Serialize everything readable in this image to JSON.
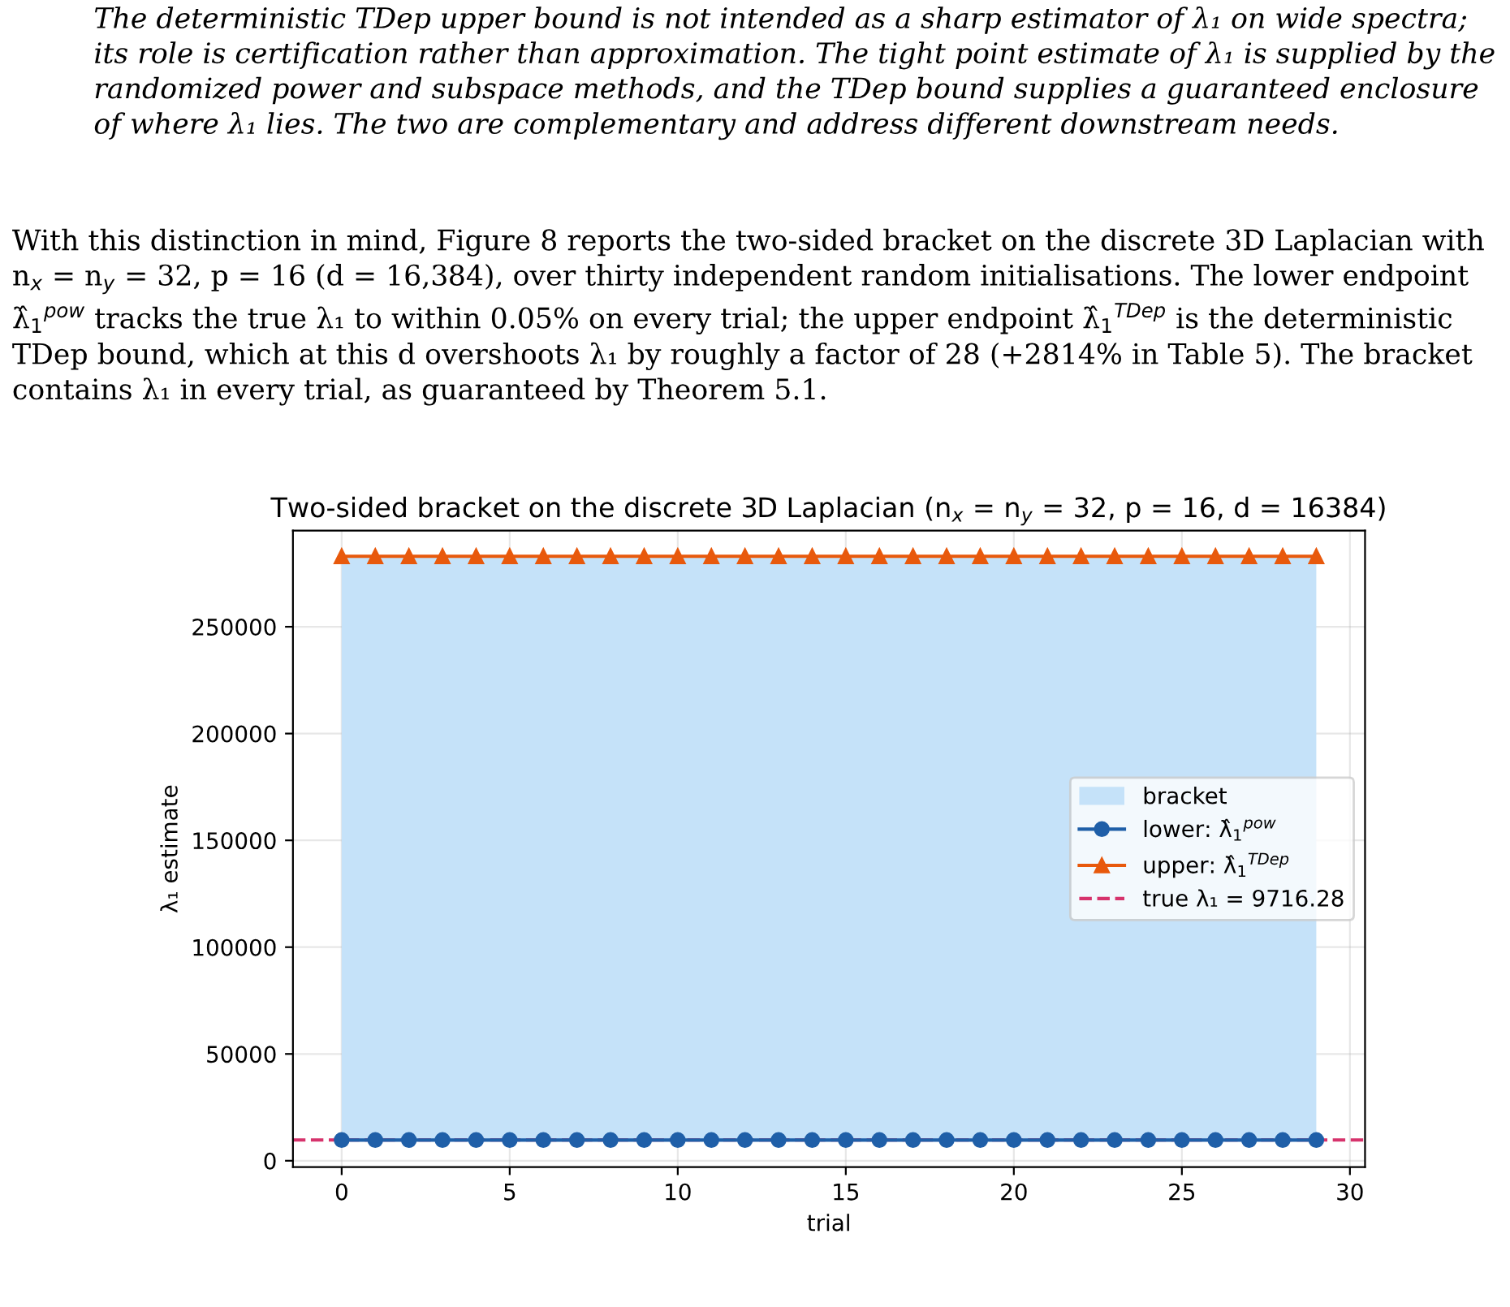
{
  "chart_data": {
    "type": "line",
    "title": "Two-sided bracket on the discrete 3D Laplacian (n$_{x}$ = n$_{y}$ = 32, p = 16, d = 16384)",
    "xlabel": "trial",
    "ylabel": "λ₁ estimate",
    "x": [
      0,
      1,
      2,
      3,
      4,
      5,
      6,
      7,
      8,
      9,
      10,
      11,
      12,
      13,
      14,
      15,
      16,
      17,
      18,
      19,
      20,
      21,
      22,
      23,
      24,
      25,
      26,
      27,
      28,
      29
    ],
    "series": [
      {
        "name": "lower: λ̂$_{1}$$^{pow}$",
        "color": "#1f5fa8",
        "marker": "circle",
        "values": [
          9700,
          9700,
          9700,
          9700,
          9700,
          9700,
          9700,
          9700,
          9700,
          9700,
          9700,
          9700,
          9700,
          9700,
          9700,
          9700,
          9700,
          9700,
          9700,
          9700,
          9700,
          9700,
          9700,
          9700,
          9700,
          9700,
          9700,
          9700,
          9700,
          9700
        ]
      },
      {
        "name": "upper: λ̂$_{1}$$^{TDep}$",
        "color": "#e8590c",
        "marker": "triangle",
        "values": [
          283000,
          283000,
          283000,
          283000,
          283000,
          283000,
          283000,
          283000,
          283000,
          283000,
          283000,
          283000,
          283000,
          283000,
          283000,
          283000,
          283000,
          283000,
          283000,
          283000,
          283000,
          283000,
          283000,
          283000,
          283000,
          283000,
          283000,
          283000,
          283000,
          283000
        ]
      }
    ],
    "bands": [
      {
        "axis": "y",
        "from": 9700,
        "to": 283000,
        "label": "bracket",
        "color": "#c5e2f9"
      }
    ],
    "ref_lines": [
      {
        "axis": "y",
        "value": 9716.28,
        "label": "true λ₁ = 9716.28",
        "color": "#d6336c",
        "line_style": "dashed"
      }
    ],
    "xlim": [
      -1.45,
      30.45
    ],
    "ylim": [
      -3000,
      295000
    ],
    "xticks": [
      0,
      5,
      10,
      15,
      20,
      25,
      30
    ],
    "yticks": [
      0,
      50000,
      100000,
      150000,
      200000,
      250000
    ],
    "grid": true,
    "legend": "right",
    "annotations": [
      "The deterministic TDep upper bound is not intended as a sharp estimator of λ₁ on wide spectra; its role is certification rather than approximation. The tight point estimate of λ₁ is supplied by the randomized power and subspace methods, and the TDep bound supplies a guaranteed enclosure of where λ₁ lies. The two are complementary and address different downstream needs.",
      "With this distinction in mind, Figure 8 reports the two-sided bracket on the discrete 3D Laplacian with n$_{x}$ = n$_{y}$ = 32, p = 16 (d = 16,384), over thirty independent random initialisations. The lower endpoint λ̂$_{1}$$^{pow}$ tracks the true λ₁ to within 0.05% on every trial; the upper endpoint λ̂$_{1}$$^{TDep}$ is the deterministic TDep bound, which at this d overshoots λ₁ by roughly a factor of 28 (+2814% in Table 5). The bracket contains λ₁ in every trial, as guaranteed by Theorem 5.1."
    ]
  }
}
